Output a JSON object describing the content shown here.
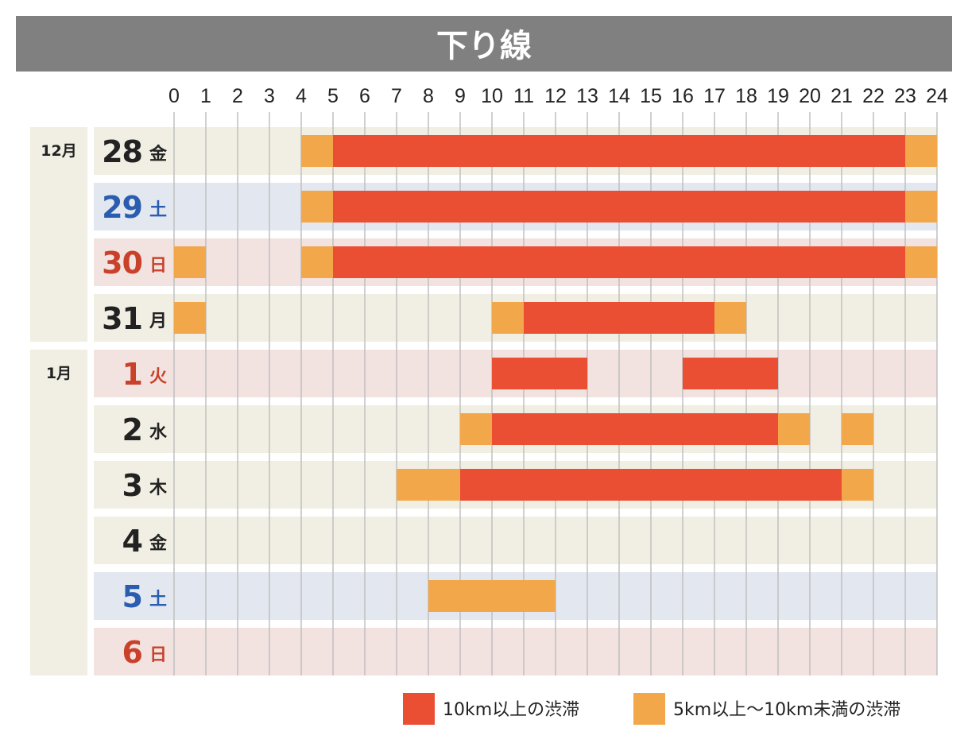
{
  "title": "下り線",
  "chart_data": {
    "type": "gantt",
    "x_ticks": [
      "0",
      "1",
      "2",
      "3",
      "4",
      "5",
      "6",
      "7",
      "8",
      "9",
      "10",
      "11",
      "12",
      "13",
      "14",
      "15",
      "16",
      "17",
      "18",
      "19",
      "20",
      "21",
      "22",
      "23",
      "24"
    ],
    "xlim": [
      0,
      24
    ],
    "grid": true,
    "months": [
      {
        "label": "12月",
        "rows": [
          0,
          3
        ]
      },
      {
        "label": "1月",
        "rows": [
          4,
          9
        ]
      }
    ],
    "days": [
      {
        "day": "28",
        "dow": "金",
        "type": "weekday",
        "spans": [
          {
            "start": 4,
            "end": 5,
            "level": "5km"
          },
          {
            "start": 5,
            "end": 23,
            "level": "10km"
          },
          {
            "start": 23,
            "end": 24,
            "level": "5km"
          }
        ]
      },
      {
        "day": "29",
        "dow": "土",
        "type": "saturday",
        "spans": [
          {
            "start": 4,
            "end": 5,
            "level": "5km"
          },
          {
            "start": 5,
            "end": 23,
            "level": "10km"
          },
          {
            "start": 23,
            "end": 24,
            "level": "5km"
          }
        ]
      },
      {
        "day": "30",
        "dow": "日",
        "type": "holiday",
        "spans": [
          {
            "start": 0,
            "end": 1,
            "level": "5km"
          },
          {
            "start": 4,
            "end": 5,
            "level": "5km"
          },
          {
            "start": 5,
            "end": 23,
            "level": "10km"
          },
          {
            "start": 23,
            "end": 24,
            "level": "5km"
          }
        ]
      },
      {
        "day": "31",
        "dow": "月",
        "type": "weekday",
        "spans": [
          {
            "start": 0,
            "end": 1,
            "level": "5km"
          },
          {
            "start": 10,
            "end": 11,
            "level": "5km"
          },
          {
            "start": 11,
            "end": 17,
            "level": "10km"
          },
          {
            "start": 17,
            "end": 18,
            "level": "5km"
          }
        ]
      },
      {
        "day": "1",
        "dow": "火",
        "type": "holiday",
        "spans": [
          {
            "start": 10,
            "end": 13,
            "level": "10km"
          },
          {
            "start": 16,
            "end": 19,
            "level": "10km"
          }
        ]
      },
      {
        "day": "2",
        "dow": "水",
        "type": "weekday",
        "spans": [
          {
            "start": 9,
            "end": 10,
            "level": "5km"
          },
          {
            "start": 10,
            "end": 19,
            "level": "10km"
          },
          {
            "start": 19,
            "end": 20,
            "level": "5km"
          },
          {
            "start": 21,
            "end": 22,
            "level": "5km"
          }
        ]
      },
      {
        "day": "3",
        "dow": "木",
        "type": "weekday",
        "spans": [
          {
            "start": 7,
            "end": 9,
            "level": "5km"
          },
          {
            "start": 9,
            "end": 21,
            "level": "10km"
          },
          {
            "start": 21,
            "end": 22,
            "level": "5km"
          }
        ]
      },
      {
        "day": "4",
        "dow": "金",
        "type": "weekday",
        "spans": []
      },
      {
        "day": "5",
        "dow": "土",
        "type": "saturday",
        "spans": [
          {
            "start": 8,
            "end": 12,
            "level": "5km"
          }
        ]
      },
      {
        "day": "6",
        "dow": "日",
        "type": "holiday",
        "spans": []
      }
    ],
    "legend": [
      {
        "key": "10km",
        "label": "10km以上の渋滞",
        "color": "#ea4f34"
      },
      {
        "key": "5km",
        "label": "5km以上〜10km未満の渋滞",
        "color": "#f2a84a"
      }
    ]
  },
  "colors": {
    "title_bg": "#808080",
    "weekday_bg": "#f1efe3",
    "saturday_bg": "#e3e7ef",
    "holiday_bg": "#f2e3e1",
    "month_bg": "#f1efe3",
    "weekday_text": "#222222",
    "saturday_text": "#2a5db0",
    "holiday_text": "#c9412a",
    "grid": "#c0c0c0"
  }
}
